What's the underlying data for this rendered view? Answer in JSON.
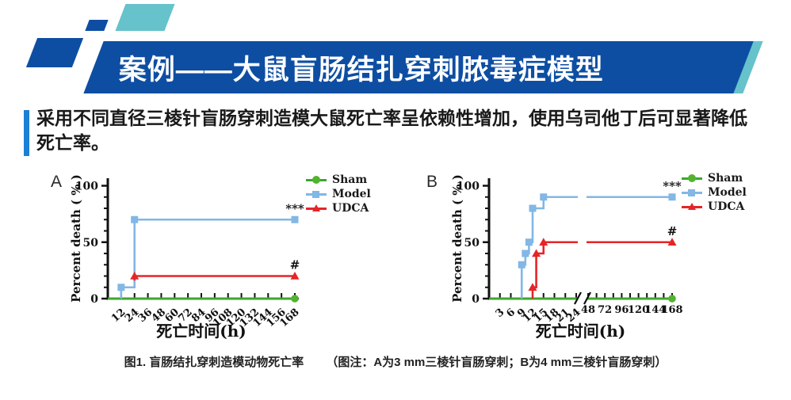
{
  "header": {
    "title": "案例——大鼠盲肠结扎穿刺脓毒症模型"
  },
  "intro": {
    "line1": "采用不同直径三棱针盲肠穿刺造模大鼠死亡率呈依赖性增加，使用乌司他丁后可显著降低",
    "line2": "死亡率。"
  },
  "caption": {
    "part1": "图1. 盲肠结扎穿刺造模动物死亡率",
    "part2": "（图注：A为3 mm三棱针盲肠穿刺；B为4 mm三棱针盲肠穿刺）"
  },
  "colors": {
    "banner_blue": "#0d4ea3",
    "teal": "#66c2cb",
    "intro_bar_blue": "#1d80d6",
    "sham_green": "#3ea62e",
    "sham_marker_green": "#52b32e",
    "model_blue": "#82b7e6",
    "udca_red": "#e52528",
    "axis_black": "#111111"
  },
  "chart_data": [
    {
      "id": "A",
      "type": "line",
      "subtype": "survival-step",
      "panel_label": "A",
      "xlabel": "死亡时间(h)",
      "ylabel": "Percent death ( % )",
      "ylim": [
        0,
        110
      ],
      "yticks": [
        0,
        50,
        100
      ],
      "yticks_minor": [
        10,
        20,
        30,
        40,
        60,
        70,
        80,
        90
      ],
      "x_segments": [
        {
          "range": [
            0,
            168
          ],
          "ticks": [
            12,
            24,
            36,
            48,
            60,
            72,
            84,
            96,
            108,
            120,
            132,
            144,
            156,
            168
          ],
          "minor_ticks": [],
          "tick_label_rotation": -42
        }
      ],
      "series": [
        {
          "name": "Sham",
          "color": "#3ea62e",
          "marker_color": "#52b32e",
          "marker": "circle",
          "points": [
            [
              0,
              0
            ],
            [
              168,
              0
            ]
          ],
          "markers": [
            [
              168,
              0
            ]
          ]
        },
        {
          "name": "Model",
          "color": "#82b7e6",
          "marker_color": "#82b7e6",
          "marker": "square",
          "points": [
            [
              12,
              0
            ],
            [
              12,
              10
            ],
            [
              24,
              10
            ],
            [
              24,
              70
            ],
            [
              168,
              70
            ]
          ],
          "markers": [
            [
              12,
              10
            ],
            [
              24,
              70
            ],
            [
              168,
              70
            ]
          ]
        },
        {
          "name": "UDCA",
          "color": "#e52528",
          "marker_color": "#e52528",
          "marker": "triangle",
          "points": [
            [
              24,
              16
            ],
            [
              24,
              20
            ],
            [
              168,
              20
            ]
          ],
          "markers": [
            [
              24,
              20
            ],
            [
              168,
              20
            ]
          ]
        }
      ],
      "annotations": [
        {
          "text": "***",
          "x": 168,
          "y": 70,
          "dy": -9
        },
        {
          "text": "#",
          "x": 168,
          "y": 20,
          "dy": -9
        }
      ],
      "legend": [
        "Sham",
        "Model",
        "UDCA"
      ],
      "legend_position": "right-top"
    },
    {
      "id": "B",
      "type": "line",
      "subtype": "survival-step",
      "panel_label": "B",
      "xlabel": "死亡时间(h)",
      "ylabel": "Percent death ( % )",
      "ylim": [
        0,
        110
      ],
      "yticks": [
        0,
        50,
        100
      ],
      "yticks_minor": [
        10,
        20,
        30,
        40,
        60,
        70,
        80,
        90
      ],
      "axis_break_between": [
        24,
        48
      ],
      "x_segments": [
        {
          "range": [
            0,
            24
          ],
          "ticks": [
            3,
            6,
            9,
            12,
            15,
            18,
            21,
            24
          ],
          "minor_ticks": [],
          "tick_label_rotation": -42
        },
        {
          "range": [
            48,
            168
          ],
          "ticks": [
            48,
            72,
            96,
            120,
            144,
            168
          ],
          "minor_ticks": [
            60,
            84,
            108,
            132,
            156
          ],
          "tick_label_rotation": 0
        }
      ],
      "series": [
        {
          "name": "Sham",
          "color": "#3ea62e",
          "marker_color": "#52b32e",
          "marker": "circle",
          "points": [
            [
              0,
              0
            ],
            [
              168,
              0
            ]
          ],
          "markers": [
            [
              168,
              0
            ]
          ]
        },
        {
          "name": "Model",
          "color": "#82b7e6",
          "marker_color": "#82b7e6",
          "marker": "square",
          "points": [
            [
              9,
              0
            ],
            [
              9,
              30
            ],
            [
              10,
              30
            ],
            [
              10,
              40
            ],
            [
              11,
              40
            ],
            [
              11,
              50
            ],
            [
              12,
              50
            ],
            [
              12,
              80
            ],
            [
              15,
              80
            ],
            [
              15,
              90
            ],
            [
              168,
              90
            ]
          ],
          "markers": [
            [
              9,
              30
            ],
            [
              10,
              40
            ],
            [
              11,
              50
            ],
            [
              12,
              80
            ],
            [
              15,
              90
            ],
            [
              168,
              90
            ]
          ]
        },
        {
          "name": "UDCA",
          "color": "#e52528",
          "marker_color": "#e52528",
          "marker": "triangle",
          "points": [
            [
              12,
              0
            ],
            [
              12,
              10
            ],
            [
              13,
              10
            ],
            [
              13,
              40
            ],
            [
              15,
              40
            ],
            [
              15,
              50
            ],
            [
              168,
              50
            ]
          ],
          "markers": [
            [
              12,
              10
            ],
            [
              13,
              40
            ],
            [
              15,
              50
            ],
            [
              168,
              50
            ]
          ]
        }
      ],
      "annotations": [
        {
          "text": "***",
          "x": 168,
          "y": 90,
          "dy": -9
        },
        {
          "text": "#",
          "x": 168,
          "y": 50,
          "dy": -9
        }
      ],
      "legend": [
        "Sham",
        "Model",
        "UDCA"
      ],
      "legend_position": "right-top"
    }
  ]
}
